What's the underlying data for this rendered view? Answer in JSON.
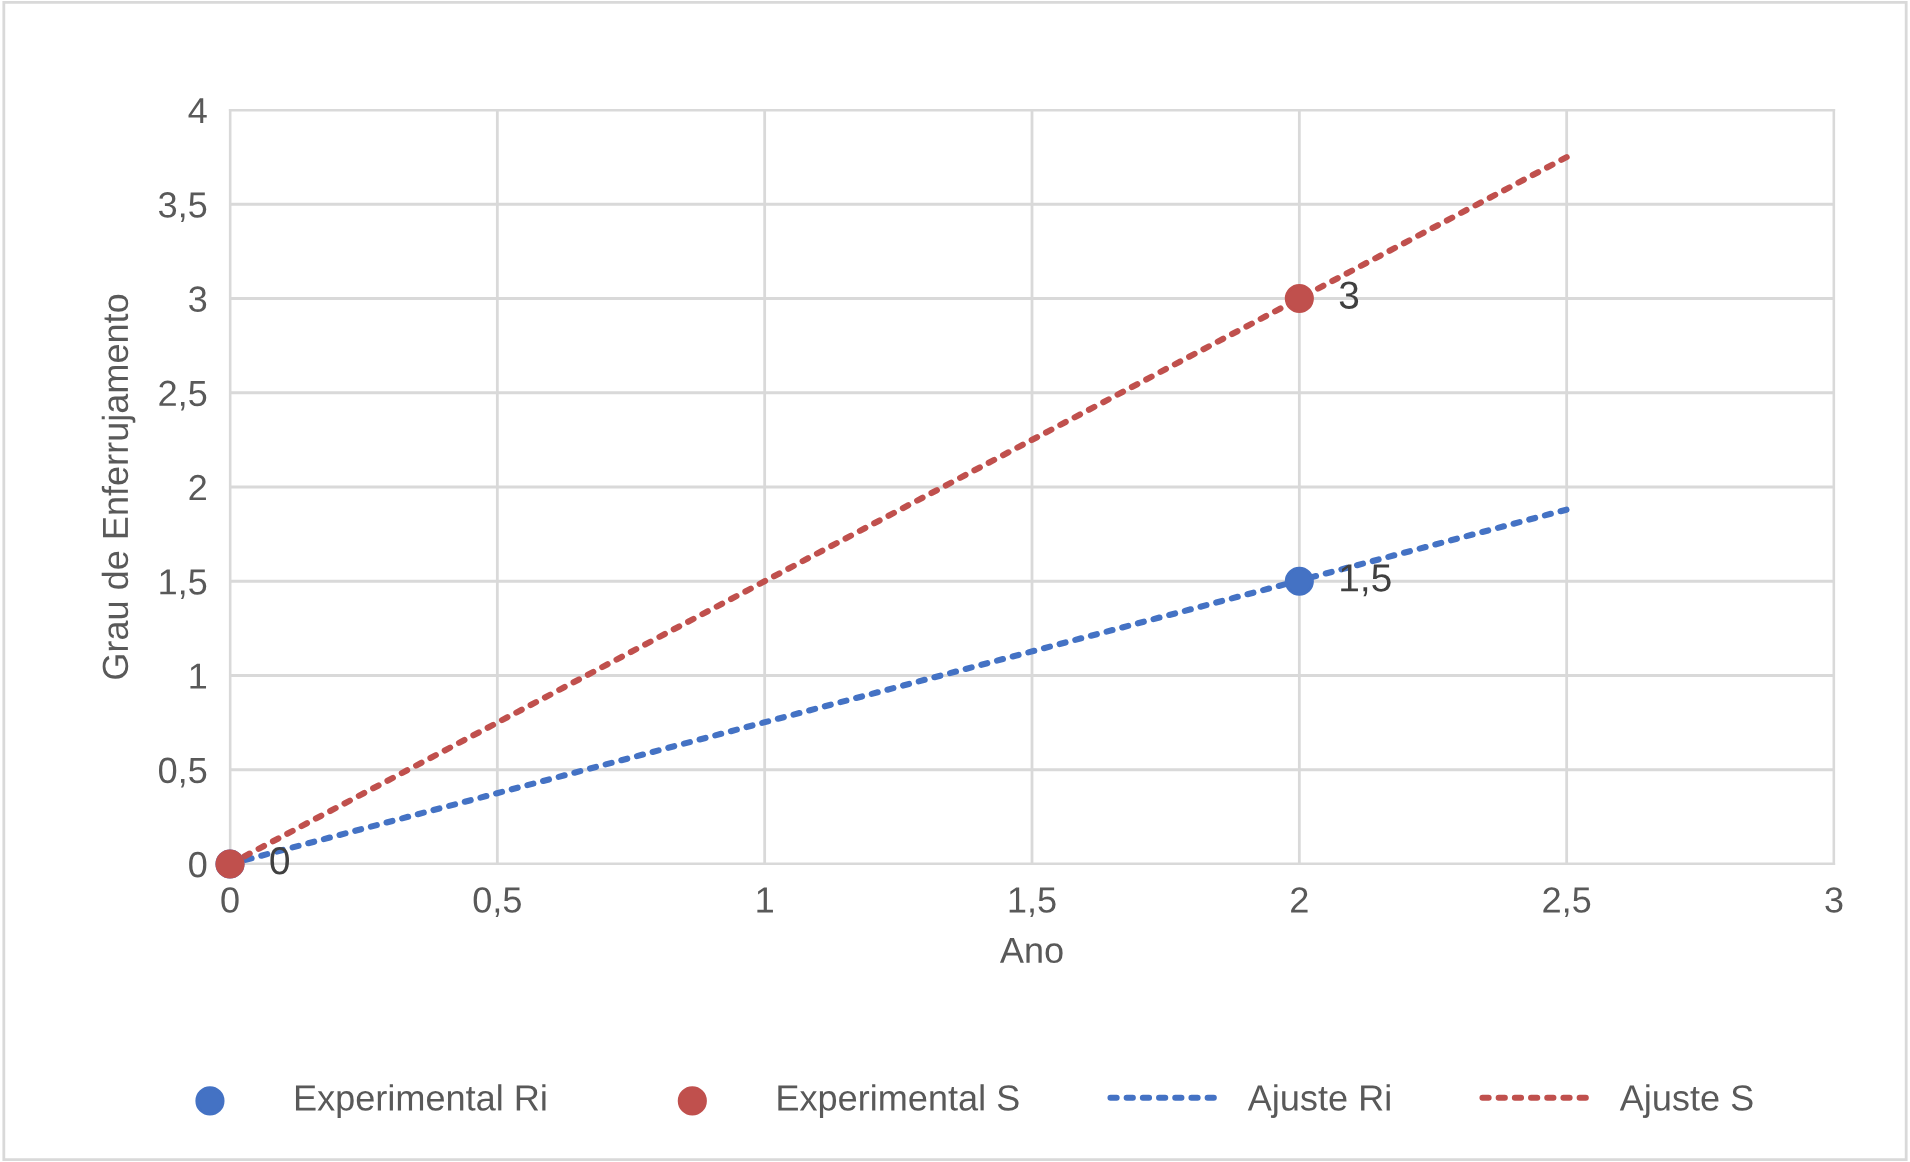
{
  "chart_data": {
    "type": "scatter",
    "xlabel": "Ano",
    "ylabel": "Grau de Enferrujamento",
    "xlim": [
      0,
      3
    ],
    "ylim": [
      0,
      4
    ],
    "xticks": [
      0,
      {
        "value": 0.5,
        "label": "0,5"
      },
      1,
      {
        "value": 1.5,
        "label": "1,5"
      },
      2,
      {
        "value": 2.5,
        "label": "2,5"
      },
      3
    ],
    "yticks": [
      0,
      {
        "value": 0.5,
        "label": "0,5"
      },
      1,
      {
        "value": 1.5,
        "label": "1,5"
      },
      2,
      {
        "value": 2.5,
        "label": "2,5"
      },
      3,
      {
        "value": 3.5,
        "label": "3,5"
      },
      4
    ],
    "grid": true,
    "legend": "bottom",
    "series": [
      {
        "name": "Experimental Ri",
        "marker": "circle",
        "color": "#4472c4",
        "x": [
          0,
          2
        ],
        "values": [
          0,
          1.5
        ],
        "value_labels": [
          null,
          "1,5"
        ]
      },
      {
        "name": "Experimental S",
        "marker": "circle",
        "color": "#c0504d",
        "x": [
          0,
          2
        ],
        "values": [
          0,
          3
        ],
        "value_labels": [
          "0",
          "3"
        ]
      },
      {
        "name": "Ajuste Ri",
        "type": "line",
        "color": "#4472c4",
        "line_style": "dotted",
        "x": [
          0,
          2.5
        ],
        "values": [
          0,
          1.88
        ]
      },
      {
        "name": "Ajuste S",
        "type": "line",
        "color": "#c0504d",
        "line_style": "dotted",
        "x": [
          0,
          2.5
        ],
        "values": [
          0,
          3.75
        ]
      }
    ]
  }
}
